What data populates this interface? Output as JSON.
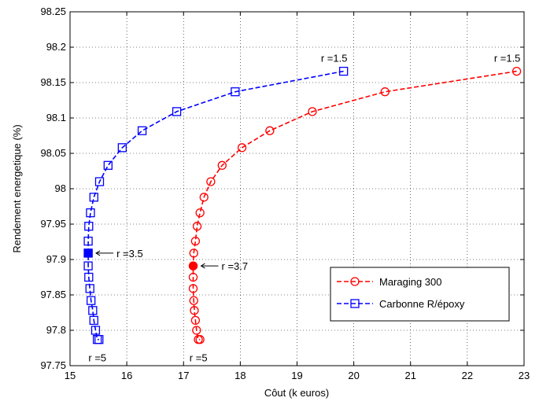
{
  "chart_data": {
    "type": "line",
    "xlabel": "Côut (k euros)",
    "ylabel": "Rendement energetique (%)",
    "xlim": [
      15,
      23
    ],
    "ylim": [
      97.75,
      98.25
    ],
    "xticks": [
      15,
      16,
      17,
      18,
      19,
      20,
      21,
      22,
      23
    ],
    "yticks": [
      97.75,
      97.8,
      97.85,
      97.9,
      97.95,
      98,
      98.05,
      98.1,
      98.15,
      98.2,
      98.25
    ],
    "ytick_labels": [
      "97.75",
      "97.8",
      "97.85",
      "97.9",
      "97.95",
      "98",
      "98.05",
      "98.1",
      "98.15",
      "98.2",
      "98.25"
    ],
    "grid": true,
    "legend_position": "lower-right",
    "series": [
      {
        "name": "Maraging 300",
        "color": "#ff0000",
        "marker": "circle",
        "linestyle": "dashed",
        "x": [
          22.87,
          20.55,
          19.27,
          18.52,
          18.03,
          17.68,
          17.48,
          17.36,
          17.29,
          17.24,
          17.21,
          17.18,
          17.17,
          17.17,
          17.17,
          17.18,
          17.19,
          17.21,
          17.23,
          17.26,
          17.29
        ],
        "y": [
          98.166,
          98.137,
          98.109,
          98.082,
          98.058,
          98.033,
          98.01,
          97.988,
          97.966,
          97.947,
          97.926,
          97.909,
          97.891,
          97.875,
          97.859,
          97.842,
          97.828,
          97.814,
          97.8,
          97.787,
          97.787
        ],
        "highlight": {
          "x": 17.17,
          "y": 97.891,
          "label": "r =3.7"
        },
        "start_label": "r =1.5",
        "end_label": "r =5"
      },
      {
        "name": "Carbonne R/époxy",
        "color": "#0000ff",
        "marker": "square",
        "linestyle": "dashed",
        "x": [
          19.82,
          17.91,
          16.88,
          16.27,
          15.92,
          15.67,
          15.52,
          15.42,
          15.36,
          15.33,
          15.32,
          15.32,
          15.32,
          15.33,
          15.35,
          15.37,
          15.4,
          15.42,
          15.45,
          15.48,
          15.51
        ],
        "y": [
          98.166,
          98.137,
          98.109,
          98.082,
          98.058,
          98.033,
          98.01,
          97.988,
          97.966,
          97.947,
          97.926,
          97.909,
          97.891,
          97.875,
          97.859,
          97.842,
          97.828,
          97.814,
          97.8,
          97.787,
          97.787
        ],
        "highlight": {
          "x": 15.32,
          "y": 97.909,
          "label": "r =3.5"
        },
        "start_label": "r =1.5",
        "end_label": "r =5"
      }
    ]
  }
}
